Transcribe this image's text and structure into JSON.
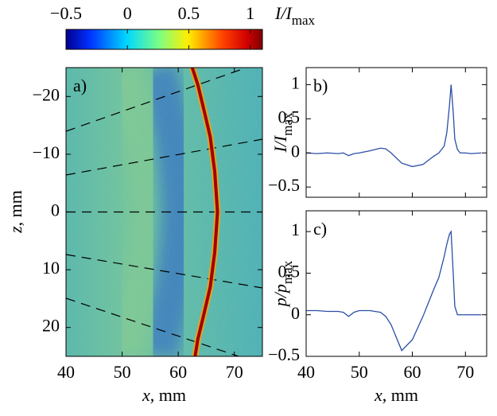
{
  "chart_data": [
    {
      "type": "colorbar",
      "clim": [
        -0.5,
        1.1
      ],
      "ticks": [
        {
          "value": -0.5,
          "label": "−0.5"
        },
        0,
        0.5,
        1
      ],
      "label": {
        "main": "I/I",
        "sub": "max"
      }
    },
    {
      "type": "heatmap",
      "annotation": "a)",
      "xlim": [
        40,
        75
      ],
      "ylim": [
        25,
        -25
      ],
      "xticks": [
        40,
        50,
        60,
        70
      ],
      "yticks": [
        {
          "value": -20,
          "label": "−20"
        },
        {
          "value": -10,
          "label": "−10"
        },
        0,
        10,
        20
      ],
      "xlabel": "x, mm",
      "ylabel": "z, mm",
      "show_xtick_labels": true,
      "x": [
        62.5,
        63.5,
        64.5,
        65.7,
        66.5,
        67,
        66.5,
        65.7,
        64.5,
        63.5,
        63
      ],
      "values": [
        -25,
        -22,
        -18,
        -13,
        -7,
        0,
        7,
        13,
        18,
        22,
        25
      ],
      "color": "#a00000"
    },
    {
      "type": "line",
      "annotation": "b)",
      "xlim": [
        40,
        74
      ],
      "ylim": [
        -0.65,
        1.25
      ],
      "xticks": [
        40,
        50,
        60,
        70
      ],
      "show_xtick_labels": false,
      "yticks": [
        {
          "value": -0.5,
          "label": "−0.5"
        },
        0,
        0.5,
        1
      ],
      "ylabel": {
        "main": "I/I",
        "sub": "max"
      },
      "color": "#2a4ea6",
      "x": [
        40,
        42,
        44,
        46,
        47,
        48,
        49,
        50,
        52,
        54,
        55,
        56,
        58,
        60,
        62,
        64,
        65,
        66,
        66.5,
        67,
        67.3,
        67.7,
        68,
        68.5,
        69,
        70,
        71,
        73
      ],
      "values": [
        0,
        -0.01,
        0,
        -0.01,
        0,
        -0.04,
        -0.01,
        0,
        0.03,
        0.07,
        0.06,
        0,
        -0.15,
        -0.2,
        -0.17,
        -0.05,
        0,
        0.1,
        0.3,
        0.7,
        1,
        0.6,
        0.2,
        0.05,
        0,
        0,
        -0.01,
        0
      ]
    },
    {
      "type": "line",
      "annotation": "c)",
      "xlim": [
        40,
        74
      ],
      "ylim": [
        -0.5,
        1.25
      ],
      "xticks": [
        40,
        50,
        60,
        70
      ],
      "show_xtick_labels": true,
      "xlabel": "x, mm",
      "yticks": [
        {
          "value": -0.5,
          "label": "−0.5"
        },
        0,
        0.5,
        1
      ],
      "ylabel": {
        "main": "p/p",
        "sub": "max"
      },
      "color": "#2a4ea6",
      "x": [
        40,
        42,
        44,
        46,
        47,
        48,
        49,
        50,
        52,
        54,
        55,
        56,
        58,
        60,
        62,
        64,
        65,
        66,
        66.5,
        67,
        67.3,
        67.7,
        68,
        68.5,
        69,
        70,
        71,
        73
      ],
      "values": [
        0.05,
        0.05,
        0.04,
        0.04,
        0.03,
        -0.02,
        0.03,
        0.05,
        0.05,
        0.03,
        -0.02,
        -0.12,
        -0.43,
        -0.3,
        -0.02,
        0.3,
        0.45,
        0.7,
        0.85,
        0.97,
        1,
        0.5,
        0.1,
        0,
        0,
        0,
        0,
        0
      ]
    }
  ]
}
